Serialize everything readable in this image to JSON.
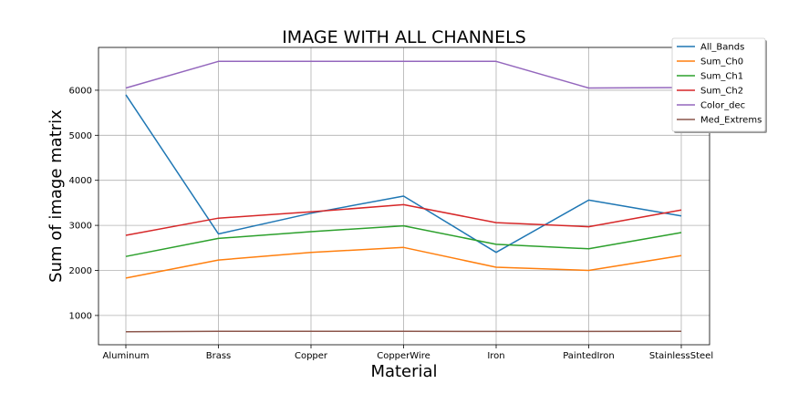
{
  "chart_data": {
    "type": "line",
    "title": "IMAGE WITH ALL CHANNELS",
    "xlabel": "Material",
    "ylabel": "Sum of image matrix",
    "categories": [
      "Aluminum",
      "Brass",
      "Copper",
      "CopperWire",
      "Iron",
      "PaintedIron",
      "StainlessSteel"
    ],
    "ylim": [
      350,
      6950
    ],
    "yticks": [
      1000,
      2000,
      3000,
      4000,
      5000,
      6000
    ],
    "grid": true,
    "legend_position": "top-right",
    "series": [
      {
        "name": "All_Bands",
        "color": "#1f77b4",
        "values": [
          5900,
          2810,
          3270,
          3650,
          2400,
          3560,
          3210
        ]
      },
      {
        "name": "Sum_Ch0",
        "color": "#ff7f0e",
        "values": [
          1830,
          2230,
          2400,
          2510,
          2070,
          2000,
          2330
        ]
      },
      {
        "name": "Sum_Ch1",
        "color": "#2ca02c",
        "values": [
          2310,
          2710,
          2860,
          2990,
          2580,
          2480,
          2840
        ]
      },
      {
        "name": "Sum_Ch2",
        "color": "#d62728",
        "values": [
          2780,
          3160,
          3300,
          3460,
          3060,
          2970,
          3340
        ]
      },
      {
        "name": "Color_dec",
        "color": "#9467bd",
        "values": [
          6050,
          6640,
          6640,
          6640,
          6640,
          6050,
          6060
        ]
      },
      {
        "name": "Med_Extrems",
        "color": "#8c564b",
        "values": [
          640,
          650,
          648,
          650,
          645,
          645,
          650
        ]
      }
    ]
  }
}
